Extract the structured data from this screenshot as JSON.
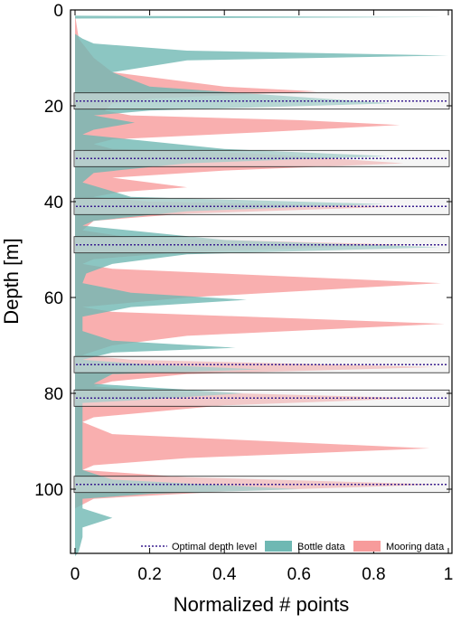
{
  "chart_data": {
    "type": "area",
    "orientation": "horizontal",
    "xlabel": "Normalized # points",
    "ylabel": "Depth [m]",
    "xlim": [
      0,
      1
    ],
    "ylim": [
      115,
      0
    ],
    "xticks": [
      "0",
      "0.2",
      "0.4",
      "0.6",
      "0.8",
      "1"
    ],
    "yticks": [
      "0",
      "20",
      "40",
      "60",
      "80",
      "100"
    ],
    "grid": false,
    "legend_position": "bottom-right",
    "optimal_depth_levels": [
      19,
      31,
      41,
      49,
      74,
      81,
      99
    ],
    "series": [
      {
        "name": "Mooring data",
        "color": "#f79b9b",
        "points": [
          [
            0,
            1
          ],
          [
            0.01,
            6
          ],
          [
            0.05,
            10
          ],
          [
            0.1,
            13
          ],
          [
            0.4,
            16
          ],
          [
            0.65,
            17
          ],
          [
            0.2,
            18.5
          ],
          [
            0.1,
            19.5
          ],
          [
            0.08,
            21
          ],
          [
            0.15,
            22
          ],
          [
            0.6,
            23
          ],
          [
            0.87,
            24
          ],
          [
            0.5,
            25.5
          ],
          [
            0.1,
            27
          ],
          [
            0.05,
            28
          ],
          [
            0.1,
            29
          ],
          [
            0.5,
            30
          ],
          [
            0.88,
            32
          ],
          [
            0.4,
            33.5
          ],
          [
            0.1,
            35
          ],
          [
            0.3,
            37
          ],
          [
            0.12,
            38
          ],
          [
            0.05,
            39
          ],
          [
            0.2,
            40
          ],
          [
            0.88,
            41
          ],
          [
            0.3,
            42.5
          ],
          [
            0.05,
            44
          ],
          [
            0.02,
            46
          ],
          [
            0.15,
            47.5
          ],
          [
            0.9,
            49
          ],
          [
            0.3,
            50.5
          ],
          [
            0.05,
            52
          ],
          [
            0.02,
            53
          ],
          [
            0.1,
            54
          ],
          [
            0.98,
            57
          ],
          [
            0.3,
            60
          ],
          [
            0.02,
            62
          ],
          [
            0.1,
            63
          ],
          [
            0.99,
            65.5
          ],
          [
            0.3,
            68
          ],
          [
            0.1,
            70
          ],
          [
            0.02,
            72
          ],
          [
            0.15,
            73
          ],
          [
            0.97,
            74.5
          ],
          [
            0.3,
            76
          ],
          [
            0.1,
            77.5
          ],
          [
            0.05,
            78.5
          ],
          [
            0.2,
            79.5
          ],
          [
            0.92,
            81
          ],
          [
            0.4,
            82.5
          ],
          [
            0.05,
            85
          ],
          [
            0.02,
            86
          ],
          [
            0.1,
            88.5
          ],
          [
            0.95,
            91.5
          ],
          [
            0.3,
            93.5
          ],
          [
            0.05,
            95
          ],
          [
            0.02,
            96
          ],
          [
            0.3,
            97.5
          ],
          [
            0.98,
            99
          ],
          [
            0.4,
            100.5
          ],
          [
            0.05,
            102
          ],
          [
            0,
            104
          ]
        ]
      },
      {
        "name": "Bottle data",
        "color": "#6fb8b3",
        "points": [
          [
            0,
            1.2
          ],
          [
            0.98,
            1.5
          ],
          [
            0,
            1.8
          ],
          [
            0,
            5
          ],
          [
            0.02,
            6
          ],
          [
            0.05,
            7
          ],
          [
            0.3,
            8.5
          ],
          [
            1.0,
            9.5
          ],
          [
            0.3,
            10.5
          ],
          [
            0.1,
            13
          ],
          [
            0.2,
            16
          ],
          [
            0.85,
            19.5
          ],
          [
            0.2,
            21
          ],
          [
            0.05,
            22
          ],
          [
            0.16,
            23.5
          ],
          [
            0.05,
            25
          ],
          [
            0.02,
            26
          ],
          [
            0.4,
            29
          ],
          [
            0.84,
            30.5
          ],
          [
            0.3,
            32
          ],
          [
            0.05,
            34
          ],
          [
            0.02,
            36
          ],
          [
            0.15,
            39
          ],
          [
            0.83,
            40.5
          ],
          [
            0.3,
            42
          ],
          [
            0.05,
            44
          ],
          [
            0.02,
            45
          ],
          [
            0.4,
            48
          ],
          [
            0.98,
            49.5
          ],
          [
            0.3,
            51
          ],
          [
            0.1,
            53
          ],
          [
            0.03,
            55
          ],
          [
            0.02,
            57
          ],
          [
            0.15,
            59
          ],
          [
            0.46,
            60.5
          ],
          [
            0.15,
            62
          ],
          [
            0.02,
            64
          ],
          [
            0.02,
            67
          ],
          [
            0.1,
            69
          ],
          [
            0.43,
            70.5
          ],
          [
            0.1,
            71.5
          ],
          [
            0.02,
            73
          ],
          [
            0.2,
            74
          ],
          [
            0.5,
            75
          ],
          [
            0.1,
            76
          ],
          [
            0.05,
            78
          ],
          [
            0.45,
            80
          ],
          [
            0.15,
            81.5
          ],
          [
            0.02,
            82
          ],
          [
            0.02,
            96
          ],
          [
            0.1,
            98
          ],
          [
            0.6,
            100
          ],
          [
            0.2,
            101
          ],
          [
            0.02,
            102
          ],
          [
            0.02,
            104
          ],
          [
            0.1,
            106
          ],
          [
            0.02,
            108
          ],
          [
            0.02,
            110
          ],
          [
            0.01,
            113
          ],
          [
            0,
            114
          ]
        ]
      },
      {
        "name": "Optimal depth level",
        "color": "#3a1f8f"
      }
    ]
  }
}
